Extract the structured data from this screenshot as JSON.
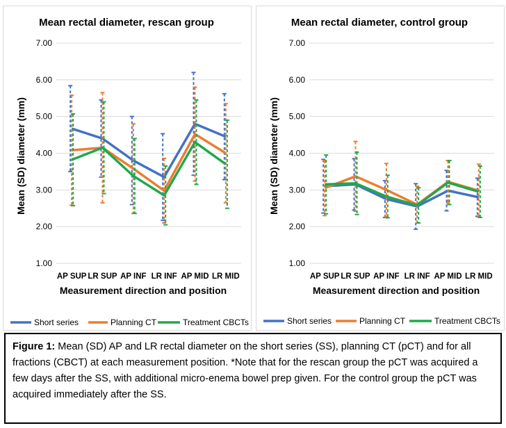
{
  "caption": {
    "label": "Figure 1:",
    "text": " Mean (SD) AP and LR rectal diameter on the short series (SS), planning CT (pCT) and for all fractions (CBCT) at each measurement position. *Note that for the rescan group the pCT was acquired a few days after the SS, with additional micro-enema bowel prep given. For the control group the pCT was acquired immediately after the SS."
  },
  "colors": {
    "short_series": "#4472C4",
    "planning_ct": "#ED7D31",
    "treatment_cbcts": "#21A84B",
    "grid": "#d9d9d9"
  },
  "chart_data": [
    {
      "type": "line",
      "title": "Mean rectal diameter, rescan group",
      "xlabel": "Measurement direction and position",
      "ylabel": "Mean (SD) diameter (mm)",
      "categories": [
        "AP SUP",
        "LR SUP",
        "AP INF",
        "LR INF",
        "AP MID",
        "LR MID"
      ],
      "ylim": [
        1.0,
        7.0
      ],
      "yticks": [
        "1.00",
        "2.00",
        "3.00",
        "4.00",
        "5.00",
        "6.00",
        "7.00"
      ],
      "grid": true,
      "legend_position": "bottom",
      "series": [
        {
          "name": "Short series",
          "color": "#4472C4",
          "values": [
            4.67,
            4.4,
            3.8,
            3.35,
            4.8,
            4.45
          ],
          "sd": [
            1.17,
            1.05,
            1.2,
            1.18,
            1.4,
            1.17
          ]
        },
        {
          "name": "Planning CT",
          "color": "#ED7D31",
          "values": [
            4.08,
            4.15,
            3.58,
            2.98,
            4.52,
            4.0
          ],
          "sd": [
            1.5,
            1.5,
            1.22,
            0.88,
            1.28,
            1.35
          ]
        },
        {
          "name": "Treatment CBCTs",
          "color": "#21A84B",
          "values": [
            3.82,
            4.15,
            3.38,
            2.85,
            4.3,
            3.7
          ],
          "sd": [
            1.25,
            1.25,
            1.02,
            0.8,
            1.15,
            1.2
          ]
        }
      ]
    },
    {
      "type": "line",
      "title": "Mean rectal diameter, control group",
      "xlabel": "Measurement direction and position",
      "ylabel": "Mean (SD) diameter (mm)",
      "categories": [
        "AP SUP",
        "LR SUP",
        "AP INF",
        "LR INF",
        "AP MID",
        "LR MID"
      ],
      "ylim": [
        1.0,
        7.0
      ],
      "yticks": [
        "1.00",
        "2.00",
        "3.00",
        "4.00",
        "5.00",
        "6.00",
        "7.00"
      ],
      "grid": true,
      "legend_position": "bottom",
      "series": [
        {
          "name": "Short series",
          "color": "#4472C4",
          "values": [
            3.1,
            3.15,
            2.75,
            2.55,
            2.98,
            2.8
          ],
          "sd": [
            0.73,
            0.7,
            0.5,
            0.62,
            0.55,
            0.52
          ]
        },
        {
          "name": "Planning CT",
          "color": "#ED7D31",
          "values": [
            3.05,
            3.37,
            3.0,
            2.6,
            3.22,
            2.98
          ],
          "sd": [
            0.75,
            0.95,
            0.72,
            0.5,
            0.58,
            0.72
          ]
        },
        {
          "name": "Treatment CBCTs",
          "color": "#21A84B",
          "values": [
            3.15,
            3.18,
            2.82,
            2.58,
            3.2,
            2.95
          ],
          "sd": [
            0.8,
            0.85,
            0.58,
            0.48,
            0.6,
            0.7
          ]
        }
      ]
    }
  ]
}
